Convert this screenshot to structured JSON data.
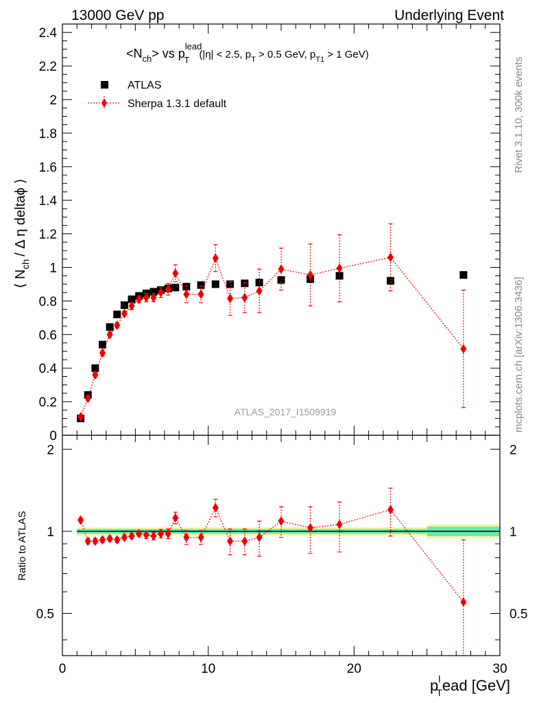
{
  "header": {
    "left": "13000 GeV pp",
    "right": "Underlying Event"
  },
  "title": {
    "main": "<N",
    "sub1": "ch",
    "mid": "> vs p",
    "sup": "lead",
    "sub2": "T",
    "cond1": "(|η| < 2.5, p",
    "cond_sub1": "T",
    "cond2": " > 0.5 GeV, p",
    "cond_sub2": "T1",
    "cond3": " > 1 GeV)"
  },
  "side": {
    "rivet": "Rivet 3.1.10,  300k events",
    "mcplots": "mcplots.cern.ch [arXiv:1306.3436]"
  },
  "watermark": "ATLAS_2017_I1509919",
  "colors": {
    "data": "#000000",
    "mc": "#ee0000",
    "band_inner": "#66e9b0",
    "band_outer": "#f4f89a"
  },
  "chart_data": [
    {
      "type": "scatter",
      "ylabel": "⟨ N_ch / Δη deltaϕ ⟩",
      "ylabel_parts": {
        "a": "⟨ N",
        "sub": "ch",
        "b": "/ Δ η deltaϕ ⟩"
      },
      "xlim": [
        0,
        30
      ],
      "ylim": [
        0,
        2.45
      ],
      "xticks": [
        0,
        10,
        20,
        30
      ],
      "yticks": [
        0.2,
        0.4,
        0.6,
        0.8,
        1,
        1.2,
        1.4,
        1.6,
        1.8,
        2,
        2.2,
        2.4
      ],
      "ytick_labels": [
        "0.2",
        "0.4",
        "0.6",
        "0.8",
        "1",
        "1.2",
        "1.4",
        "1.6",
        "1.8",
        "2",
        "2.2",
        "2.4"
      ],
      "legend": [
        "ATLAS",
        "Sherpa 1.3.1 default"
      ],
      "legend_position": "top-left",
      "series": [
        {
          "name": "ATLAS",
          "marker": "square",
          "x": [
            1.25,
            1.75,
            2.25,
            2.75,
            3.25,
            3.75,
            4.25,
            4.75,
            5.25,
            5.75,
            6.25,
            6.75,
            7.25,
            7.75,
            8.5,
            9.5,
            10.5,
            11.5,
            12.5,
            13.5,
            15,
            17,
            19,
            22.5,
            27.5
          ],
          "y": [
            0.1,
            0.24,
            0.4,
            0.54,
            0.645,
            0.72,
            0.775,
            0.81,
            0.83,
            0.845,
            0.855,
            0.865,
            0.875,
            0.88,
            0.885,
            0.895,
            0.9,
            0.9,
            0.905,
            0.91,
            0.925,
            0.93,
            0.95,
            0.92,
            0.955
          ]
        },
        {
          "name": "Sherpa 1.3.1 default",
          "marker": "diamond",
          "x": [
            1.25,
            1.75,
            2.25,
            2.75,
            3.25,
            3.75,
            4.25,
            4.75,
            5.25,
            5.75,
            6.25,
            6.75,
            7.25,
            7.75,
            8.5,
            9.5,
            10.5,
            11.5,
            12.5,
            13.5,
            15,
            17,
            19,
            22.5,
            27.5
          ],
          "y": [
            0.11,
            0.22,
            0.36,
            0.49,
            0.6,
            0.655,
            0.725,
            0.77,
            0.81,
            0.82,
            0.82,
            0.85,
            0.87,
            0.965,
            0.84,
            0.84,
            1.055,
            0.815,
            0.82,
            0.86,
            0.99,
            0.955,
            0.995,
            1.06,
            0.515
          ],
          "yerr": [
            0.01,
            0.015,
            0.015,
            0.015,
            0.015,
            0.015,
            0.015,
            0.02,
            0.02,
            0.025,
            0.025,
            0.03,
            0.035,
            0.05,
            0.05,
            0.05,
            0.08,
            0.1,
            0.09,
            0.13,
            0.125,
            0.185,
            0.2,
            0.2,
            0.35
          ]
        }
      ]
    },
    {
      "type": "scatter",
      "ylabel": "Ratio to ATLAS",
      "xlabel": "p_T^lead [GeV]",
      "xlabel_parts": {
        "a": "p",
        "sub": "T",
        "sup": "l",
        "b": "ead [GeV]"
      },
      "xlim": [
        0,
        30
      ],
      "ylim": [
        0.35,
        2.25
      ],
      "xticks": [
        0,
        10,
        20,
        30
      ],
      "xtick_labels": [
        "0",
        "10",
        "20",
        "30"
      ],
      "yticks": [
        0.5,
        1,
        2
      ],
      "ytick_labels": [
        "0.5",
        "1",
        "2"
      ],
      "log_y": true,
      "band": {
        "x_edges": [
          1,
          25,
          30
        ],
        "inner": [
          0.02,
          0.04
        ],
        "outer": [
          0.035,
          0.06
        ]
      },
      "series": [
        {
          "name": "Sherpa 1.3.1 default",
          "x": [
            1.25,
            1.75,
            2.25,
            2.75,
            3.25,
            3.75,
            4.25,
            4.75,
            5.25,
            5.75,
            6.25,
            6.75,
            7.25,
            7.75,
            8.5,
            9.5,
            10.5,
            11.5,
            12.5,
            13.5,
            15,
            17,
            19,
            22.5,
            27.5
          ],
          "y": [
            1.1,
            0.92,
            0.92,
            0.93,
            0.94,
            0.93,
            0.95,
            0.96,
            0.98,
            0.97,
            0.96,
            0.98,
            0.98,
            1.12,
            0.95,
            0.95,
            1.22,
            0.92,
            0.92,
            0.95,
            1.09,
            1.03,
            1.06,
            1.2,
            0.55
          ],
          "yerr": [
            0.02,
            0.02,
            0.02,
            0.02,
            0.02,
            0.02,
            0.02,
            0.02,
            0.02,
            0.03,
            0.03,
            0.035,
            0.04,
            0.055,
            0.055,
            0.055,
            0.09,
            0.1,
            0.1,
            0.14,
            0.14,
            0.2,
            0.22,
            0.24,
            0.38
          ]
        }
      ]
    }
  ]
}
